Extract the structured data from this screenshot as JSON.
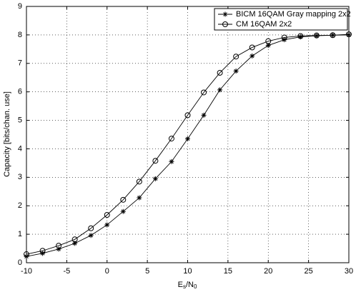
{
  "chart_data": {
    "type": "line",
    "xlabel": [
      "E",
      "s",
      "/N",
      "0"
    ],
    "ylabel": "Capacity [bits/chan. use]",
    "x": [
      -10,
      -8,
      -6,
      -4,
      -2,
      0,
      2,
      4,
      6,
      8,
      10,
      12,
      14,
      16,
      18,
      20,
      22,
      24,
      26,
      28,
      30
    ],
    "series": [
      {
        "name": "BICM 16QAM Gray mapping 2x2",
        "color": "#000000",
        "marker": "asterisk",
        "values": [
          0.22,
          0.33,
          0.48,
          0.68,
          0.96,
          1.33,
          1.8,
          2.28,
          2.95,
          3.55,
          4.35,
          5.18,
          6.07,
          6.73,
          7.26,
          7.63,
          7.83,
          7.93,
          7.97,
          7.99,
          8.0
        ]
      },
      {
        "name": "CM 16QAM 2x2",
        "color": "#000000",
        "marker": "circle",
        "values": [
          0.3,
          0.42,
          0.6,
          0.82,
          1.21,
          1.68,
          2.21,
          2.85,
          3.58,
          4.36,
          5.18,
          5.98,
          6.67,
          7.24,
          7.56,
          7.78,
          7.91,
          7.96,
          7.98,
          7.99,
          8.02
        ]
      }
    ],
    "xlim": [
      -10,
      30
    ],
    "xticks": [
      -10,
      -5,
      0,
      5,
      10,
      15,
      20,
      25,
      30
    ],
    "ylim": [
      0,
      9
    ],
    "yticks": [
      0,
      1,
      2,
      3,
      4,
      5,
      6,
      7,
      8,
      9
    ],
    "grid": true,
    "legend": "upper right"
  }
}
